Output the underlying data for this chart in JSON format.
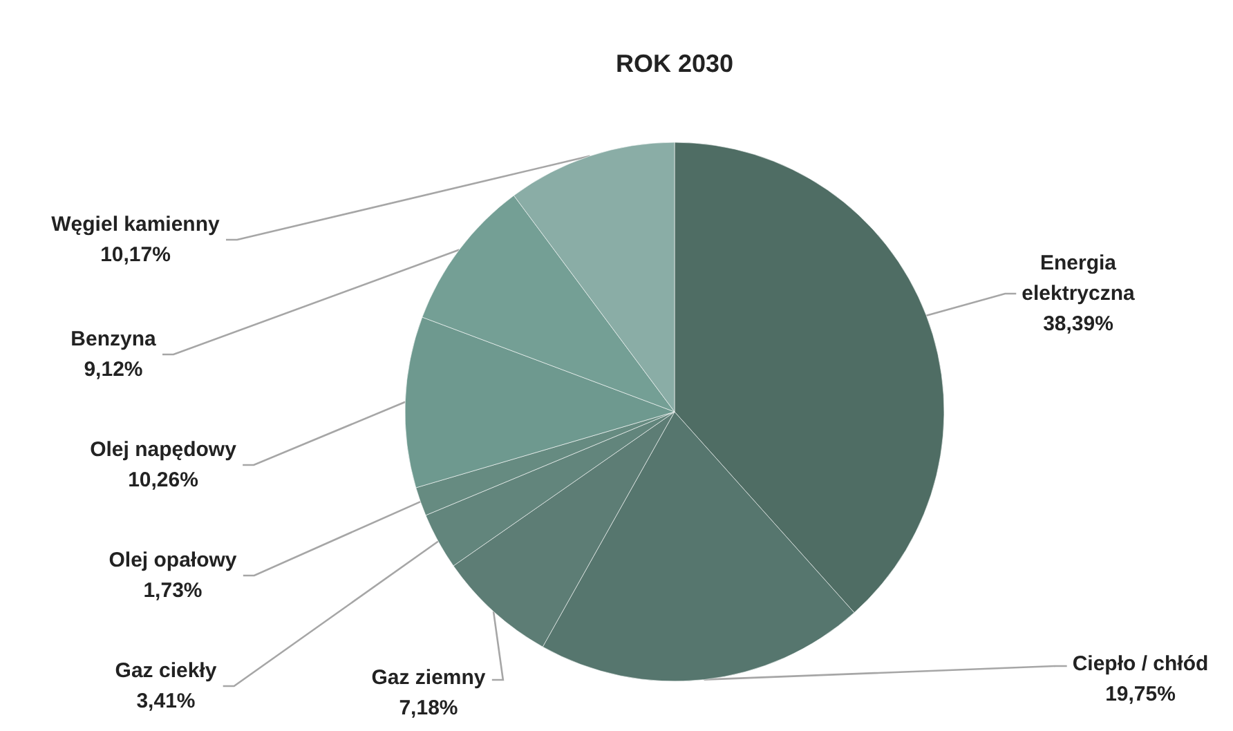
{
  "chart_data": {
    "type": "pie",
    "title": "ROK 2030",
    "categories": [
      "Energia elektryczna",
      "Ciepło / chłód",
      "Gaz ziemny",
      "Gaz ciekły",
      "Olej opałowy",
      "Olej napędowy",
      "Benzyna",
      "Węgiel kamienny"
    ],
    "values": [
      38.39,
      19.75,
      7.18,
      3.41,
      1.73,
      10.26,
      9.12,
      10.17
    ],
    "value_labels": [
      "38,39%",
      "19,75%",
      "7,18%",
      "3,41%",
      "1,73%",
      "10,26%",
      "9,12%",
      "10,17%"
    ],
    "colors": [
      "#4f6d64",
      "#56766e",
      "#5d7d75",
      "#62857c",
      "#668b81",
      "#6e998f",
      "#749f95",
      "#8aada6"
    ]
  }
}
